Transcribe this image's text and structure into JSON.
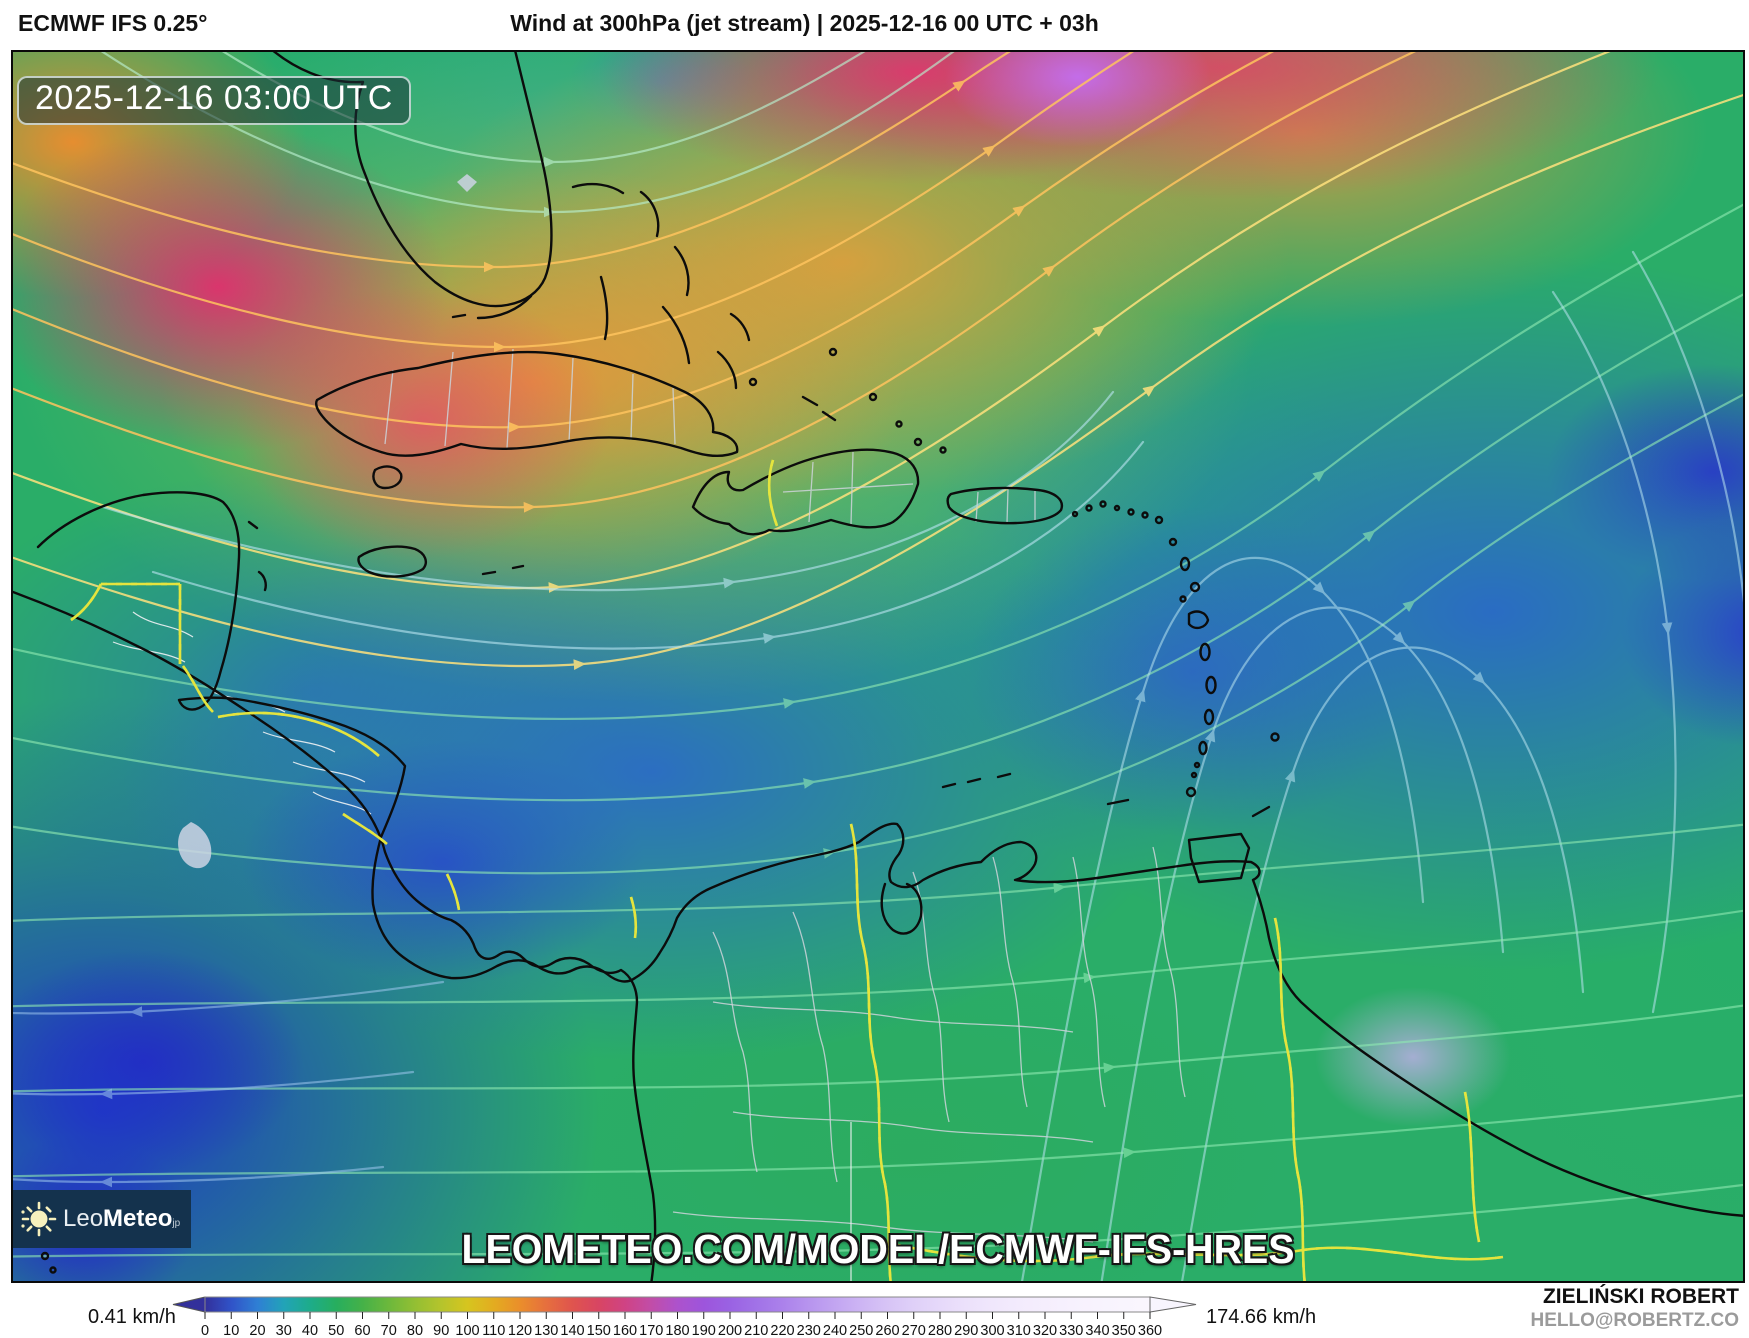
{
  "header": {
    "model_label": "ECMWF IFS 0.25°",
    "title": "Wind at 300hPa (jet stream) | 2025-12-16 00 UTC + 03h"
  },
  "map": {
    "timestamp_overlay": "2025-12-16 03:00 UTC",
    "watermark": "LEOMETEO.COM/MODEL/ECMWF-IFS-HRES",
    "logo": {
      "text_light": "Leo",
      "text_bold": "Meteo",
      "suffix": "jp"
    }
  },
  "legend": {
    "min_label": "0.41 km/h",
    "max_label": "174.66 km/h",
    "unit": "km/h",
    "tick_min": 0,
    "tick_max": 360,
    "tick_step": 10,
    "ticks": [
      0,
      10,
      20,
      30,
      40,
      50,
      60,
      70,
      80,
      90,
      100,
      110,
      120,
      130,
      140,
      150,
      160,
      170,
      180,
      190,
      200,
      210,
      220,
      230,
      240,
      250,
      260,
      270,
      280,
      290,
      300,
      310,
      320,
      330,
      340,
      350,
      360
    ],
    "gradient_stops": [
      {
        "value": 0,
        "color": "#33309b"
      },
      {
        "value": 10,
        "color": "#3053c8"
      },
      {
        "value": 20,
        "color": "#2f7fd4"
      },
      {
        "value": 30,
        "color": "#22a3b8"
      },
      {
        "value": 40,
        "color": "#1dac8a"
      },
      {
        "value": 50,
        "color": "#27ae5e"
      },
      {
        "value": 60,
        "color": "#45b148"
      },
      {
        "value": 70,
        "color": "#6cb83c"
      },
      {
        "value": 80,
        "color": "#93bf33"
      },
      {
        "value": 90,
        "color": "#b5c42c"
      },
      {
        "value": 100,
        "color": "#d6c51f"
      },
      {
        "value": 110,
        "color": "#e3ac20"
      },
      {
        "value": 120,
        "color": "#ea8e2b"
      },
      {
        "value": 130,
        "color": "#e66f3e"
      },
      {
        "value": 140,
        "color": "#df544e"
      },
      {
        "value": 150,
        "color": "#d84563"
      },
      {
        "value": 160,
        "color": "#cf4384"
      },
      {
        "value": 170,
        "color": "#c14da8"
      },
      {
        "value": 180,
        "color": "#ad52cc"
      },
      {
        "value": 190,
        "color": "#9d55dc"
      },
      {
        "value": 200,
        "color": "#9a62e3"
      },
      {
        "value": 210,
        "color": "#a172e7"
      },
      {
        "value": 220,
        "color": "#ab81eb"
      },
      {
        "value": 230,
        "color": "#b794ee"
      },
      {
        "value": 240,
        "color": "#c2a5f1"
      },
      {
        "value": 250,
        "color": "#cdb5f4"
      },
      {
        "value": 260,
        "color": "#d7c4f6"
      },
      {
        "value": 270,
        "color": "#dfd0f8"
      },
      {
        "value": 280,
        "color": "#e6d9fa"
      },
      {
        "value": 290,
        "color": "#ece1fb"
      },
      {
        "value": 300,
        "color": "#f0e7fc"
      },
      {
        "value": 310,
        "color": "#f3ebfd"
      },
      {
        "value": 320,
        "color": "#f5eefd"
      },
      {
        "value": 330,
        "color": "#f7f1fe"
      },
      {
        "value": 340,
        "color": "#f8f3fe"
      },
      {
        "value": 350,
        "color": "#f9f5fe"
      },
      {
        "value": 360,
        "color": "#faf6fe"
      }
    ]
  },
  "attribution": {
    "author": "ZIELIŃSKI ROBERT",
    "contact": "HELLO@ROBERTZ.CO"
  }
}
